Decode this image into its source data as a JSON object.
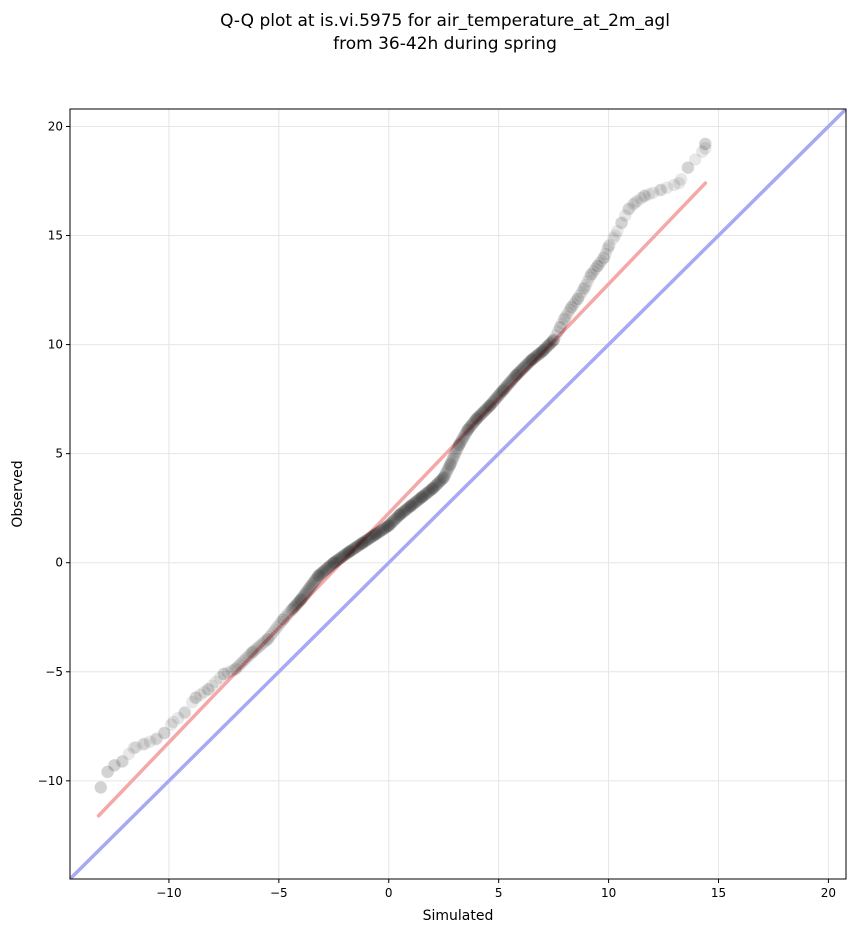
{
  "chart_data": {
    "type": "scatter",
    "title_line1": "Q-Q plot at is.vi.5975 for air_temperature_at_2m_agl",
    "title_line2": "from 36-42h during spring",
    "xlabel": "Simulated",
    "ylabel": "Observed",
    "xlim": [
      -14.5,
      20.8
    ],
    "ylim": [
      -14.5,
      20.8
    ],
    "xticks": [
      -10,
      -5,
      0,
      5,
      10,
      15,
      20
    ],
    "yticks": [
      -10,
      -5,
      0,
      5,
      10,
      15,
      20
    ],
    "xtick_labels": [
      "−10",
      "−5",
      "0",
      "5",
      "10",
      "15",
      "20"
    ],
    "ytick_labels": [
      "−10",
      "−5",
      "0",
      "5",
      "10",
      "15",
      "20"
    ],
    "grid": true,
    "identity_line": {
      "x": [
        -14.5,
        20.8
      ],
      "y": [
        -14.5,
        20.8
      ],
      "color": "#a8a8f4"
    },
    "fit_line": {
      "x": [
        -13.2,
        14.4
      ],
      "y": [
        -11.6,
        17.4
      ],
      "color": "#f4a8a8"
    },
    "point_color": "#000000",
    "quantile_curve": {
      "x": [
        -13.1,
        -12.8,
        -12.5,
        -12.1,
        -11.6,
        -11.1,
        -10.6,
        -10.2,
        -9.8,
        -9.3,
        -8.8,
        -8.2,
        -7.5,
        -7.0,
        -6.2,
        -5.5,
        -4.8,
        -4.0,
        -3.2,
        -2.5,
        -1.8,
        -1.2,
        -0.6,
        0.0,
        0.5,
        1.0,
        1.5,
        2.0,
        2.5,
        2.8,
        3.2,
        3.6,
        4.0,
        4.6,
        5.2,
        5.8,
        6.5,
        7.0,
        7.5,
        7.8,
        8.0,
        8.3,
        8.6,
        8.9,
        9.2,
        9.5,
        9.8,
        10.0,
        10.3,
        10.6,
        10.9,
        11.2,
        11.6,
        12.4,
        13.2,
        13.6,
        14.4,
        14.4
      ],
      "y": [
        -10.3,
        -9.6,
        -9.3,
        -9.1,
        -8.5,
        -8.3,
        -8.1,
        -7.8,
        -7.3,
        -6.9,
        -6.2,
        -5.8,
        -5.1,
        -4.9,
        -4.1,
        -3.5,
        -2.6,
        -1.7,
        -0.6,
        0.0,
        0.5,
        0.9,
        1.3,
        1.7,
        2.2,
        2.6,
        3.0,
        3.4,
        3.9,
        4.5,
        5.4,
        6.1,
        6.6,
        7.2,
        7.9,
        8.6,
        9.3,
        9.7,
        10.2,
        10.8,
        11.2,
        11.7,
        12.1,
        12.6,
        13.2,
        13.6,
        14.0,
        14.5,
        15.0,
        15.6,
        16.2,
        16.5,
        16.8,
        17.1,
        17.4,
        18.1,
        19.0,
        19.2
      ]
    }
  }
}
